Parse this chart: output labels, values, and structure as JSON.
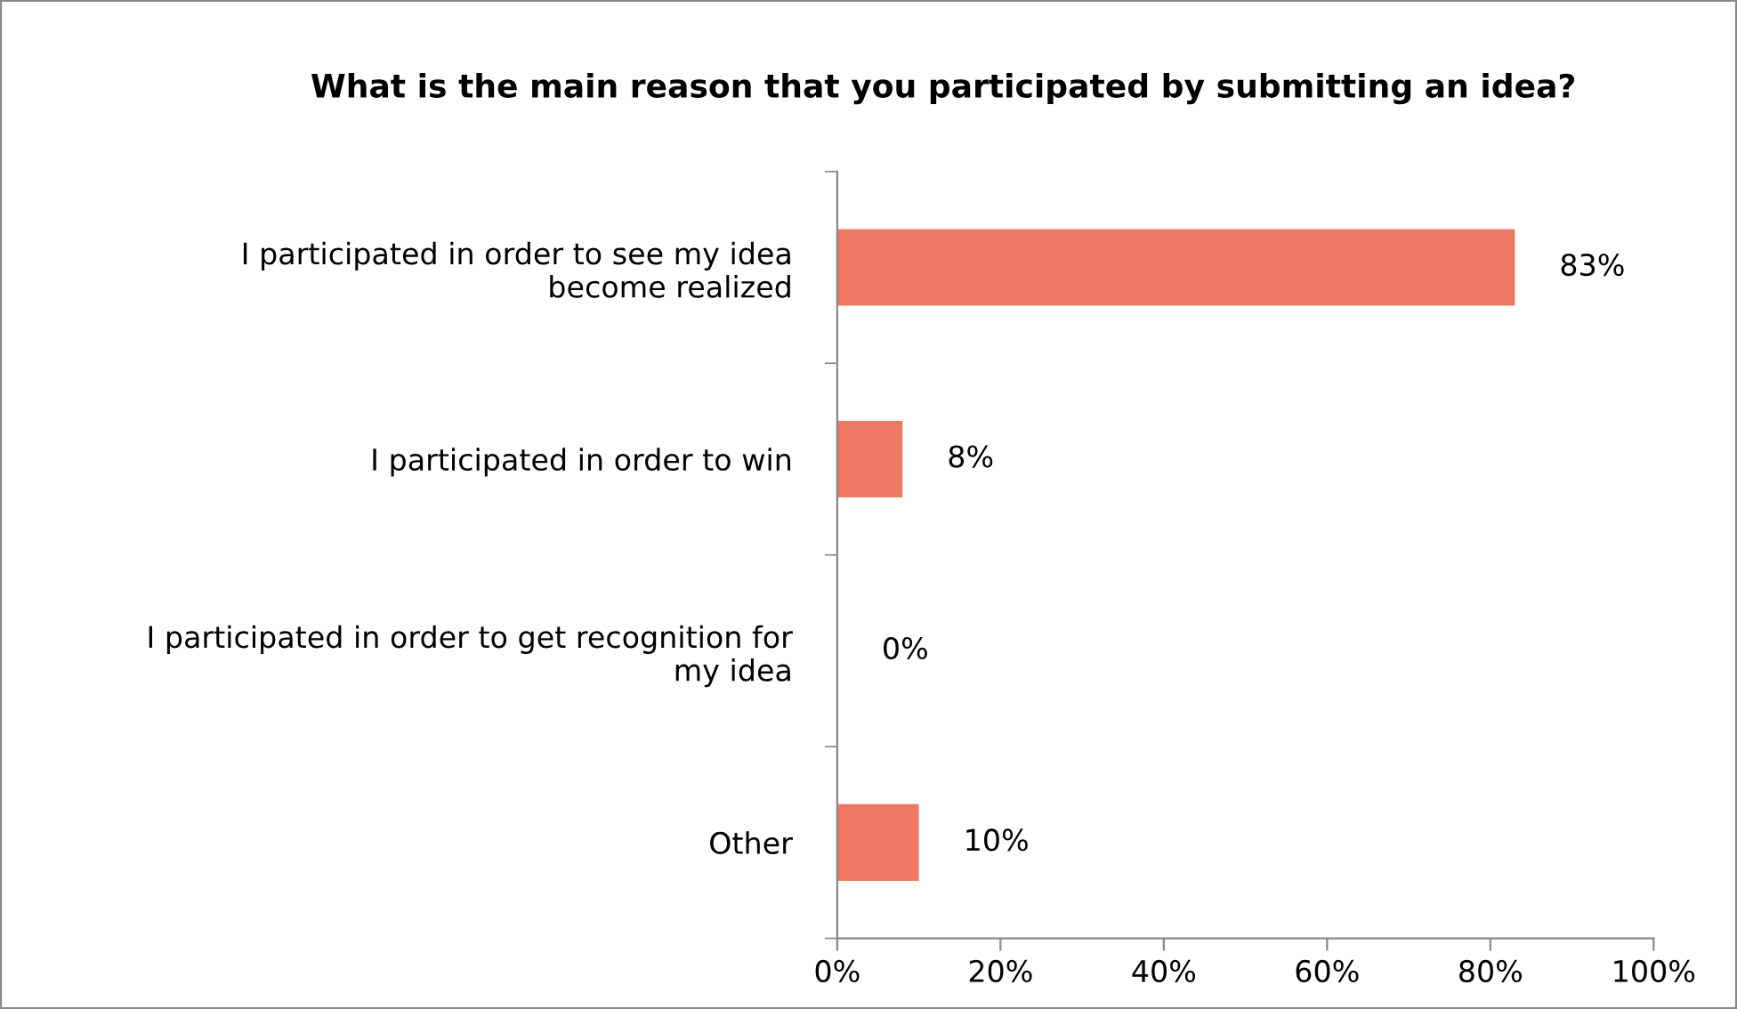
{
  "chart_data": {
    "type": "bar",
    "orientation": "horizontal",
    "title": "What is the main reason that you participated by submitting an idea?",
    "categories": [
      "I participated in order to see my idea\nbecome realized",
      "I participated in order to win",
      "I participated in order to get recognition for\nmy idea",
      "Other"
    ],
    "values": [
      83,
      8,
      0,
      10
    ],
    "value_labels": [
      "83%",
      "8%",
      "0%",
      "10%"
    ],
    "color": "#ee7864",
    "xlim": [
      0,
      100
    ],
    "xticks": [
      {
        "value": 0,
        "label": "0%"
      },
      {
        "value": 20,
        "label": "20%"
      },
      {
        "value": 40,
        "label": "40%"
      },
      {
        "value": 60,
        "label": "60%"
      },
      {
        "value": 80,
        "label": "80%"
      },
      {
        "value": 100,
        "label": "100%"
      }
    ],
    "grid": false,
    "legend": false
  }
}
